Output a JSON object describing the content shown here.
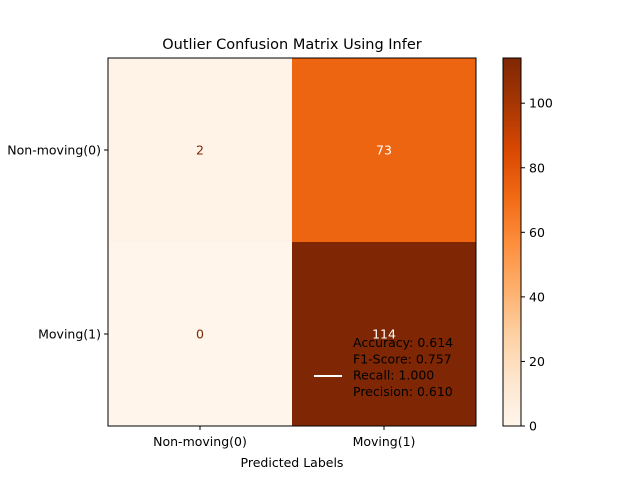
{
  "chart_data": {
    "type": "heatmap",
    "title": "Outlier Confusion Matrix Using Infer",
    "xlabel": "Predicted Labels",
    "ylabel": "",
    "x_categories": [
      "Non-moving(0)",
      "Moving(1)"
    ],
    "y_categories": [
      "Non-moving(0)",
      "Moving(1)"
    ],
    "matrix": [
      [
        2,
        73
      ],
      [
        0,
        114
      ]
    ],
    "colormap": "Oranges",
    "colorbar": {
      "min": 0,
      "max": 114,
      "ticks": [
        0,
        20,
        40,
        60,
        80,
        100
      ]
    },
    "legend": {
      "placement": "lower-right",
      "entries": [
        "Accuracy: 0.614",
        "F1-Score: 0.757",
        "Recall: 1.000",
        "Precision: 0.610"
      ],
      "line_color": "#ffffff"
    }
  }
}
